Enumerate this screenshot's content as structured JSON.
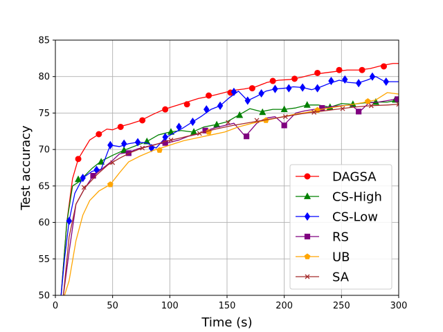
{
  "chart_data": {
    "type": "line",
    "title": "",
    "xlabel": "Time (s)",
    "ylabel": "Test accuracy",
    "xlim": [
      0,
      300
    ],
    "ylim": [
      50,
      85
    ],
    "xticks": [
      0,
      50,
      100,
      150,
      200,
      250,
      300
    ],
    "yticks": [
      50,
      55,
      60,
      65,
      70,
      75,
      80,
      85
    ],
    "xtick_labels": [
      "0",
      "50",
      "100",
      "150",
      "200",
      "250",
      "300"
    ],
    "ytick_labels": [
      "50",
      "55",
      "60",
      "65",
      "70",
      "75",
      "80",
      "85"
    ],
    "grid": true,
    "legend_position": "lower-right",
    "series": [
      {
        "name": "DAGSA",
        "color": "#ff0000",
        "marker": "circle",
        "x": [
          5,
          10,
          15,
          20,
          25,
          30,
          38,
          45,
          50,
          58,
          65,
          75,
          85,
          95,
          105,
          115,
          125,
          135,
          145,
          155,
          165,
          175,
          185,
          195,
          205,
          215,
          225,
          235,
          245,
          255,
          265,
          275,
          285,
          295,
          300
        ],
        "y": [
          50,
          60,
          66,
          68.7,
          70,
          71.3,
          72.1,
          72.8,
          72.7,
          73.2,
          73.5,
          74,
          74.8,
          75.5,
          76,
          76.5,
          77,
          77.3,
          77.7,
          78.1,
          78.3,
          78.6,
          79.2,
          79.5,
          79.6,
          79.9,
          80.3,
          80.5,
          80.7,
          80.9,
          80.9,
          81.1,
          81.5,
          81.8,
          81.8
        ],
        "marker_x": [
          20,
          38,
          57,
          76,
          96,
          115,
          134,
          153,
          172,
          190,
          209,
          229,
          248,
          268,
          287
        ],
        "marker_y": [
          68.7,
          72.1,
          73.1,
          74,
          75.5,
          76.2,
          77.4,
          77.8,
          78.4,
          79.4,
          79.7,
          80.5,
          80.9,
          80.9,
          81.4
        ]
      },
      {
        "name": "CS-High",
        "color": "#008000",
        "marker": "triangle",
        "x": [
          5,
          10,
          15,
          20,
          25,
          32,
          40,
          50,
          60,
          70,
          80,
          90,
          100,
          110,
          120,
          130,
          140,
          150,
          160,
          170,
          180,
          190,
          200,
          210,
          220,
          230,
          240,
          250,
          260,
          270,
          280,
          290,
          300
        ],
        "y": [
          50,
          60,
          65,
          65.5,
          66.3,
          67.4,
          68.4,
          69.2,
          69.9,
          70.5,
          71.1,
          72,
          72.4,
          72.6,
          72.4,
          73.1,
          73.4,
          73.8,
          74.7,
          75.6,
          75.2,
          75.5,
          75.5,
          75.7,
          76.1,
          76.1,
          75.8,
          76.3,
          76.2,
          76.4,
          76.5,
          76.5,
          76.8
        ],
        "marker_x": [
          20,
          40,
          60,
          80,
          101,
          121,
          141,
          161,
          181,
          200,
          220,
          240,
          260,
          280,
          297
        ],
        "marker_y": [
          65.9,
          68.3,
          69.9,
          71.1,
          72.4,
          72.4,
          73.4,
          74.7,
          75.1,
          75.5,
          76.1,
          75.8,
          76.2,
          76.5,
          76.8
        ]
      },
      {
        "name": "CS-Low",
        "color": "#0000ff",
        "marker": "diamond",
        "x": [
          5,
          8,
          12,
          17,
          24,
          32,
          40,
          48,
          56,
          64,
          72,
          80,
          88,
          96,
          104,
          112,
          120,
          128,
          136,
          144,
          152,
          160,
          168,
          176,
          184,
          192,
          200,
          208,
          216,
          224,
          232,
          240,
          248,
          256,
          264,
          272,
          280,
          288,
          300
        ],
        "y": [
          50,
          55,
          60.2,
          64,
          66.1,
          67,
          67.3,
          70.6,
          70.4,
          70.8,
          71,
          70.9,
          70.2,
          71.6,
          72.3,
          73,
          73.8,
          74.6,
          75.5,
          76,
          77.1,
          78,
          76.7,
          77.3,
          78,
          78.3,
          78.4,
          78.6,
          78.5,
          78.2,
          78.6,
          79.1,
          79.5,
          79.2,
          79.1,
          79.5,
          80,
          79.3,
          79.3
        ],
        "marker_x": [
          12,
          24,
          36,
          48,
          60,
          72,
          84,
          96,
          108,
          120,
          132,
          144,
          156,
          168,
          180,
          192,
          204,
          216,
          229,
          241,
          253,
          265,
          277,
          289
        ],
        "marker_y": [
          60.2,
          66.1,
          67.2,
          70.6,
          70.8,
          71,
          70.2,
          71.7,
          73.1,
          73.8,
          75.5,
          76,
          77.9,
          76.7,
          77.7,
          78.3,
          78.4,
          78.5,
          78.4,
          79.4,
          79.6,
          79.1,
          80,
          79.3
        ]
      },
      {
        "name": "RS",
        "color": "#800080",
        "marker": "square",
        "x": [
          7,
          12,
          18,
          25,
          33,
          42,
          50,
          56,
          64,
          72,
          80,
          90,
          98,
          108,
          116,
          124,
          132,
          140,
          148,
          156,
          166,
          176,
          184,
          192,
          200,
          210,
          218,
          226,
          234,
          242,
          250,
          258,
          266,
          274,
          282,
          290,
          300
        ],
        "y": [
          50,
          56,
          62.5,
          64.5,
          66.4,
          67.5,
          68.5,
          69.4,
          69.6,
          70.1,
          70.4,
          70.8,
          70.9,
          71.3,
          71.8,
          72.1,
          72.6,
          73,
          73.3,
          73.6,
          71.8,
          73.6,
          74.3,
          74.5,
          73.4,
          75,
          75.3,
          75.5,
          75.7,
          75.9,
          76,
          76.1,
          75.2,
          76.4,
          76.5,
          76.7,
          77
        ],
        "marker_x": [
          33,
          64,
          96,
          131,
          167,
          200,
          233,
          265,
          299
        ],
        "marker_y": [
          66.4,
          69.5,
          70.9,
          72.6,
          71.8,
          73.3,
          75.7,
          75.2,
          76.9
        ]
      },
      {
        "name": "UB",
        "color": "#ffa500",
        "marker": "pentagon",
        "x": [
          8,
          12,
          18,
          24,
          30,
          38,
          48,
          56,
          64,
          74,
          86,
          100,
          112,
          124,
          136,
          148,
          160,
          172,
          184,
          196,
          208,
          220,
          232,
          244,
          256,
          268,
          280,
          290,
          300
        ],
        "y": [
          50,
          52,
          57.5,
          61,
          63,
          64.3,
          65.2,
          66.8,
          68.3,
          69.1,
          69.9,
          70.6,
          71.2,
          71.6,
          72,
          72.4,
          73.1,
          73.6,
          74,
          74.4,
          74.8,
          75.1,
          75.5,
          75.8,
          76.1,
          76.4,
          76.8,
          77.8,
          77.6
        ],
        "marker_x": [
          48,
          91,
          134,
          184,
          229,
          273
        ],
        "marker_y": [
          65.2,
          69.9,
          72.4,
          74,
          75.4,
          76.6
        ]
      },
      {
        "name": "SA",
        "color": "#a52a2a",
        "marker": "x",
        "x": [
          7,
          12,
          18,
          26,
          36,
          46,
          56,
          66,
          76,
          86,
          96,
          110,
          125,
          140,
          155,
          170,
          185,
          200,
          215,
          230,
          245,
          260,
          275,
          290,
          300
        ],
        "y": [
          50,
          58,
          62.5,
          64.8,
          66.5,
          67.9,
          68.8,
          69.6,
          70.2,
          70.6,
          71.1,
          71.6,
          72.2,
          72.8,
          73.3,
          73.7,
          74.1,
          74.5,
          74.9,
          75.2,
          75.5,
          75.8,
          76,
          76.1,
          76.2
        ],
        "marker_x": [
          25,
          50,
          76,
          101,
          126,
          151,
          176,
          201,
          226,
          251,
          276,
          300
        ],
        "marker_y": [
          64.8,
          68.2,
          70.2,
          71.3,
          72.2,
          73.7,
          74,
          74.5,
          75.1,
          75.6,
          76,
          76.2
        ]
      }
    ]
  }
}
